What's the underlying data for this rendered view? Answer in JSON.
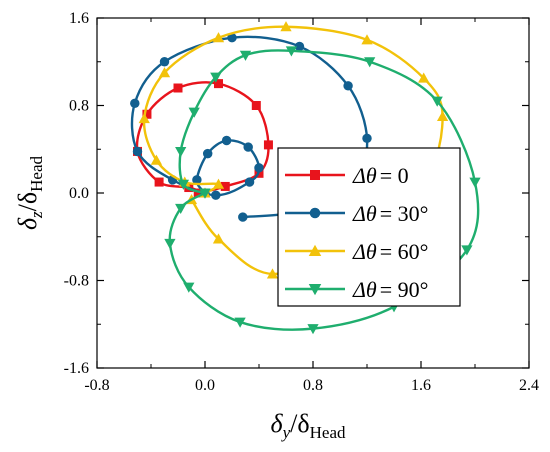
{
  "chart_data": {
    "type": "line",
    "xlabel": {
      "symbol": "δ",
      "sub": "y",
      "tail": "/δ",
      "tail_sub": "Head"
    },
    "ylabel": {
      "symbol": "δ",
      "sub": "z",
      "tail": "/δ",
      "tail_sub": "Head"
    },
    "xlim": [
      -0.8,
      2.4
    ],
    "ylim": [
      -1.6,
      1.6
    ],
    "xticks": [
      -0.8,
      0.0,
      0.8,
      1.6,
      2.4
    ],
    "xtick_labels": [
      "-0.8",
      "0.0",
      "0.8",
      "1.6",
      "2.4"
    ],
    "yticks": [
      -1.6,
      -0.8,
      0.0,
      0.8,
      1.6
    ],
    "ytick_labels": [
      "-1.6",
      "-0.8",
      "0.0",
      "0.8",
      "1.6"
    ],
    "grid": false,
    "legend_position": "center-right",
    "series": [
      {
        "name": "Δθ = 0",
        "legend_prefix": "Δθ",
        "legend_value": "= 0",
        "color": "#e8141c",
        "marker": "square",
        "x": [
          0.0,
          -0.12,
          -0.34,
          -0.5,
          -0.43,
          -0.2,
          0.1,
          0.38,
          0.47,
          0.4,
          0.15,
          -0.05
        ],
        "y": [
          0.0,
          0.05,
          0.1,
          0.38,
          0.72,
          0.96,
          1.0,
          0.8,
          0.44,
          0.18,
          0.06,
          0.0
        ]
      },
      {
        "name": "Δθ = 30°",
        "legend_prefix": "Δθ",
        "legend_value": "= 30°",
        "color": "#125f8f",
        "marker": "circle",
        "x": [
          0.0,
          -0.06,
          0.02,
          0.16,
          0.32,
          0.4,
          0.33,
          0.08,
          -0.24,
          -0.5,
          -0.52,
          -0.3,
          0.2,
          0.7,
          1.06,
          1.2,
          1.1,
          0.7,
          0.28
        ],
        "y": [
          0.0,
          0.12,
          0.36,
          0.48,
          0.42,
          0.23,
          0.1,
          -0.02,
          0.12,
          0.38,
          0.82,
          1.2,
          1.42,
          1.34,
          0.98,
          0.5,
          0.12,
          -0.16,
          -0.22
        ]
      },
      {
        "name": "Δθ = 60°",
        "legend_prefix": "Δθ",
        "legend_value": "= 60°",
        "color": "#f2c20a",
        "marker": "triangle-up",
        "x": [
          0.0,
          0.1,
          -0.15,
          -0.36,
          -0.45,
          -0.3,
          0.1,
          0.6,
          1.2,
          1.62,
          1.76,
          1.62,
          1.08,
          0.5,
          0.1,
          -0.1
        ],
        "y": [
          0.0,
          0.08,
          0.1,
          0.3,
          0.68,
          1.1,
          1.42,
          1.52,
          1.4,
          1.05,
          0.7,
          0.1,
          -0.46,
          -0.74,
          -0.42,
          -0.06
        ]
      },
      {
        "name": "Δθ = 90°",
        "legend_prefix": "Δθ",
        "legend_value": "= 90°",
        "color": "#1fae6e",
        "marker": "triangle-down",
        "x": [
          0.0,
          -0.16,
          -0.18,
          -0.08,
          0.08,
          0.3,
          0.64,
          1.22,
          1.72,
          2.0,
          1.94,
          1.4,
          0.8,
          0.26,
          -0.12,
          -0.26,
          -0.18,
          0.0
        ],
        "y": [
          0.0,
          0.08,
          0.38,
          0.74,
          1.06,
          1.26,
          1.3,
          1.2,
          0.84,
          0.1,
          -0.52,
          -1.04,
          -1.24,
          -1.18,
          -0.86,
          -0.46,
          -0.14,
          0.0
        ]
      }
    ]
  }
}
